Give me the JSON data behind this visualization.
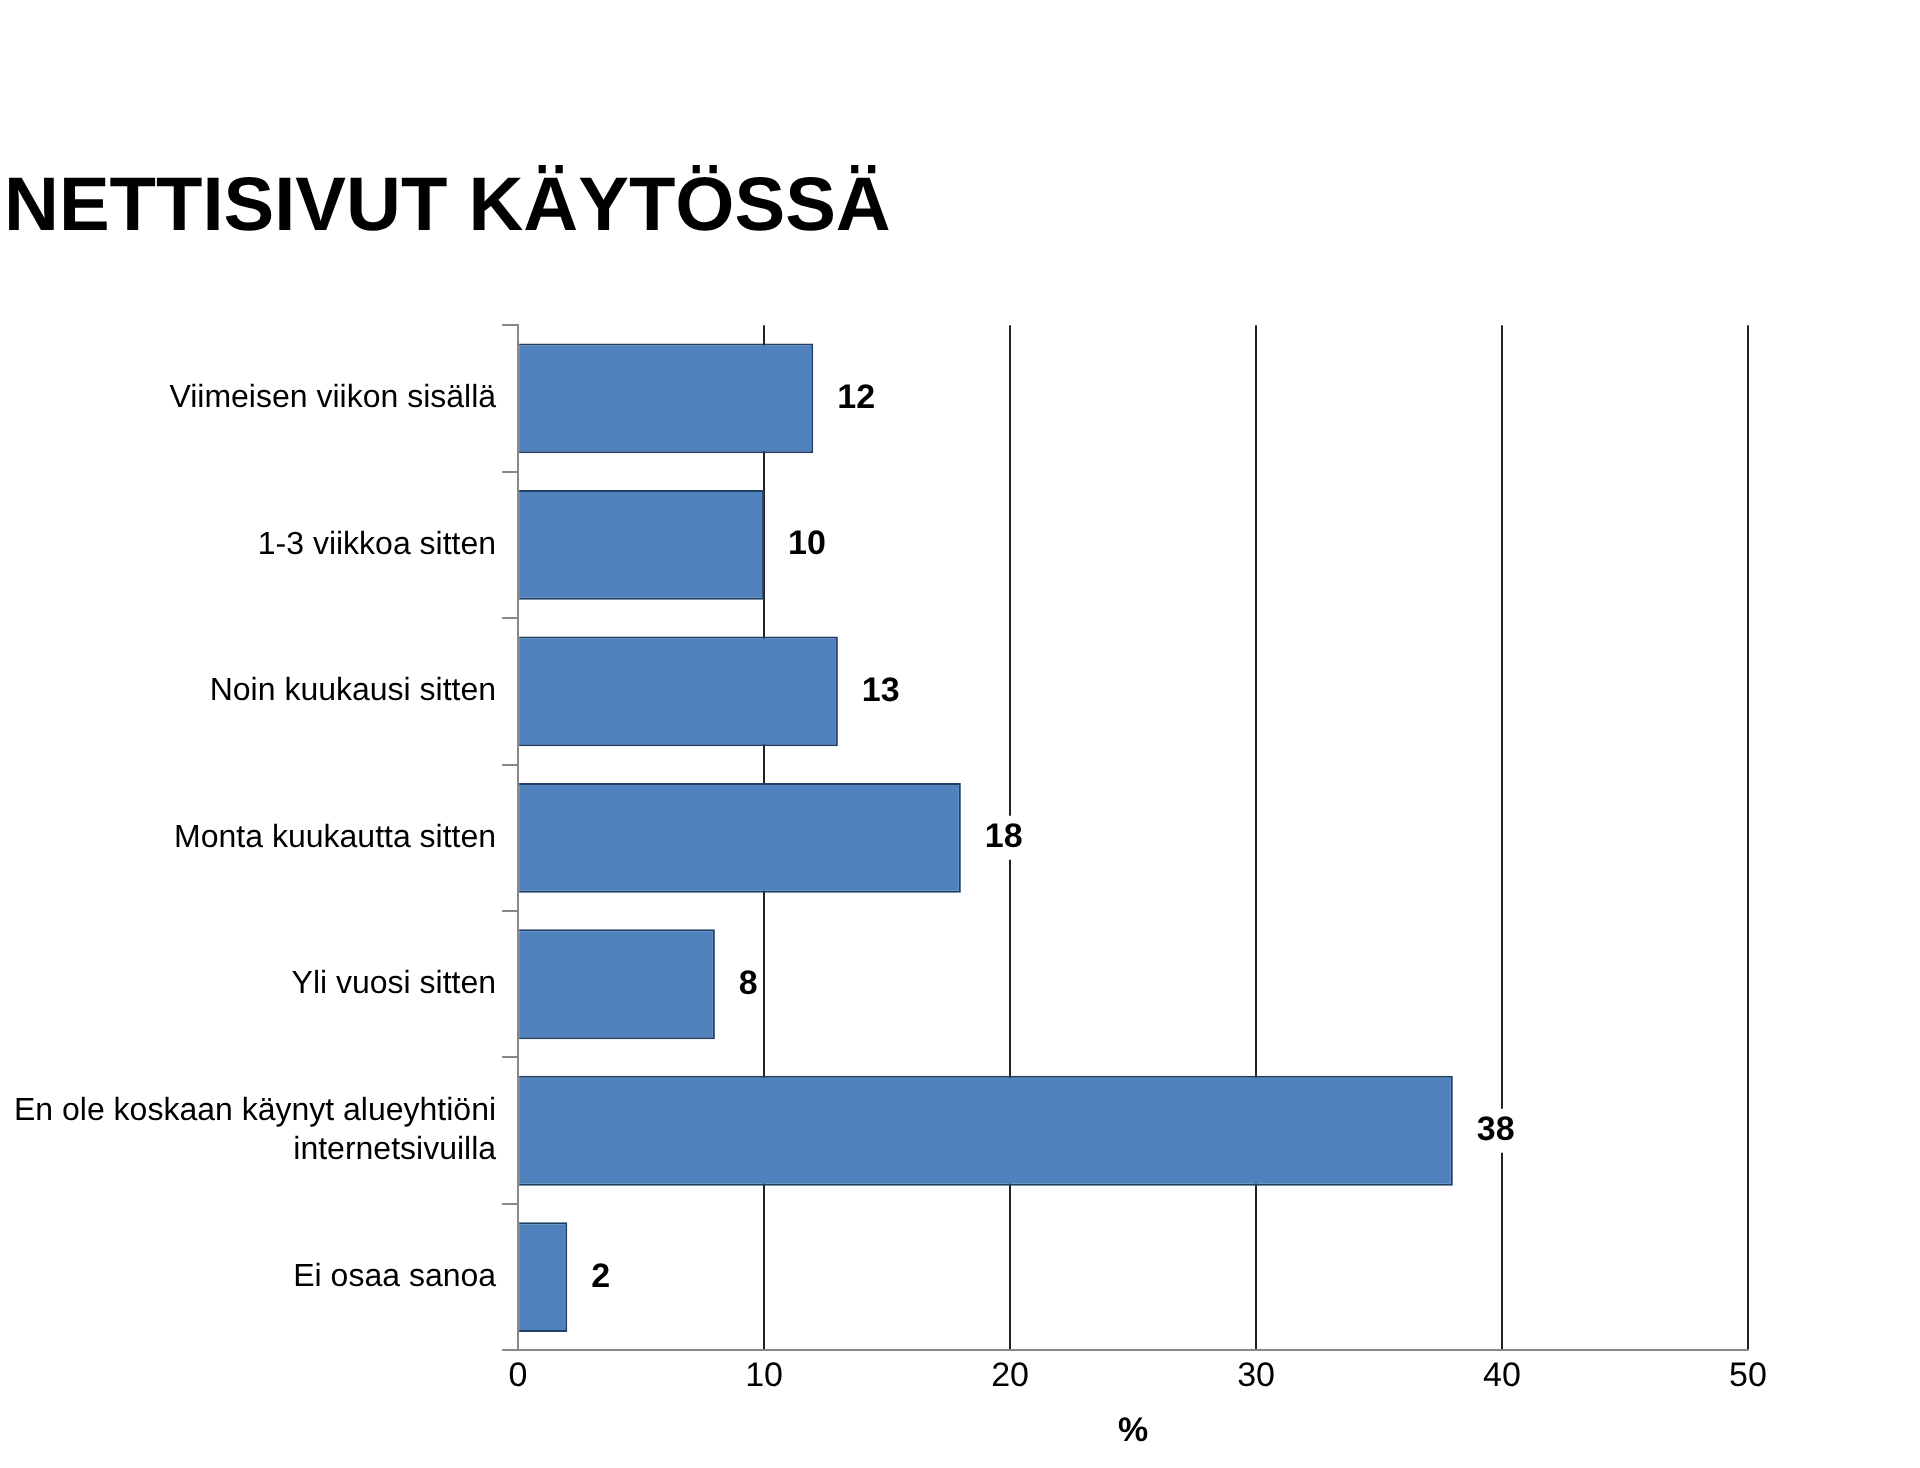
{
  "chart_data": {
    "type": "bar",
    "orientation": "horizontal",
    "title": "NETTISIVUT KÄYTÖSSÄ",
    "xlabel": "%",
    "categories": [
      "Viimeisen viikon sisällä",
      "1-3 viikkoa sitten",
      "Noin kuukausi sitten",
      "Monta kuukautta sitten",
      "Yli vuosi sitten",
      "En ole koskaan käynyt alueyhtiöni internetsivuilla",
      "Ei osaa sanoa"
    ],
    "values": [
      12,
      10,
      13,
      18,
      8,
      38,
      2
    ],
    "color": "#4f81bd",
    "xlim": [
      0,
      50
    ],
    "xticks": [
      0,
      10,
      20,
      30,
      40,
      50
    ],
    "grid": "x",
    "data_labels": true
  }
}
